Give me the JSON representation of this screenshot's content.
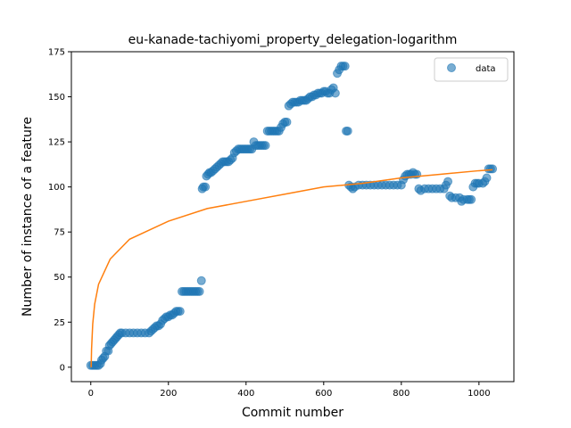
{
  "chart_data": {
    "type": "scatter",
    "title": "eu-kanade-tachiyomi_property_delegation-logarithm",
    "xlabel": "Commit number",
    "ylabel": "Number of instance of a feature",
    "xlim": [
      -50,
      1090
    ],
    "ylim": [
      -8,
      175
    ],
    "x_ticks": [
      0,
      200,
      400,
      600,
      800,
      1000
    ],
    "y_ticks": [
      0,
      25,
      50,
      75,
      100,
      125,
      150,
      175
    ],
    "grid": false,
    "legend": {
      "placement": "top-right",
      "entries": [
        "data"
      ]
    },
    "colors": {
      "scatter": "#1f77b4",
      "fit": "#ff7f0e"
    },
    "series": [
      {
        "name": "data",
        "kind": "scatter",
        "points": [
          [
            0,
            1
          ],
          [
            5,
            1
          ],
          [
            10,
            1
          ],
          [
            15,
            1
          ],
          [
            20,
            1
          ],
          [
            25,
            2
          ],
          [
            28,
            4
          ],
          [
            32,
            5
          ],
          [
            36,
            6
          ],
          [
            40,
            9
          ],
          [
            45,
            9
          ],
          [
            48,
            12
          ],
          [
            52,
            13
          ],
          [
            56,
            14
          ],
          [
            60,
            15
          ],
          [
            64,
            16
          ],
          [
            68,
            17
          ],
          [
            72,
            18
          ],
          [
            76,
            19
          ],
          [
            80,
            19
          ],
          [
            90,
            19
          ],
          [
            100,
            19
          ],
          [
            110,
            19
          ],
          [
            120,
            19
          ],
          [
            130,
            19
          ],
          [
            140,
            19
          ],
          [
            150,
            19
          ],
          [
            155,
            20
          ],
          [
            160,
            21
          ],
          [
            165,
            22
          ],
          [
            170,
            23
          ],
          [
            175,
            23
          ],
          [
            180,
            24
          ],
          [
            185,
            26
          ],
          [
            190,
            27
          ],
          [
            195,
            28
          ],
          [
            200,
            28
          ],
          [
            205,
            29
          ],
          [
            210,
            29
          ],
          [
            215,
            30
          ],
          [
            220,
            31
          ],
          [
            225,
            31
          ],
          [
            230,
            31
          ],
          [
            235,
            42
          ],
          [
            240,
            42
          ],
          [
            245,
            42
          ],
          [
            250,
            42
          ],
          [
            255,
            42
          ],
          [
            260,
            42
          ],
          [
            265,
            42
          ],
          [
            270,
            42
          ],
          [
            275,
            42
          ],
          [
            280,
            42
          ],
          [
            285,
            48
          ],
          [
            287,
            99
          ],
          [
            290,
            100
          ],
          [
            295,
            100
          ],
          [
            298,
            106
          ],
          [
            302,
            107
          ],
          [
            306,
            108
          ],
          [
            310,
            108
          ],
          [
            315,
            109
          ],
          [
            320,
            110
          ],
          [
            325,
            111
          ],
          [
            330,
            112
          ],
          [
            335,
            113
          ],
          [
            340,
            114
          ],
          [
            345,
            114
          ],
          [
            350,
            114
          ],
          [
            355,
            114
          ],
          [
            360,
            115
          ],
          [
            365,
            116
          ],
          [
            370,
            119
          ],
          [
            375,
            120
          ],
          [
            380,
            121
          ],
          [
            385,
            121
          ],
          [
            390,
            121
          ],
          [
            395,
            121
          ],
          [
            400,
            121
          ],
          [
            405,
            121
          ],
          [
            410,
            121
          ],
          [
            415,
            121
          ],
          [
            420,
            125
          ],
          [
            425,
            123
          ],
          [
            430,
            123
          ],
          [
            435,
            123
          ],
          [
            440,
            123
          ],
          [
            445,
            123
          ],
          [
            450,
            123
          ],
          [
            455,
            131
          ],
          [
            460,
            131
          ],
          [
            465,
            131
          ],
          [
            470,
            131
          ],
          [
            475,
            131
          ],
          [
            480,
            131
          ],
          [
            485,
            131
          ],
          [
            490,
            133
          ],
          [
            495,
            135
          ],
          [
            500,
            136
          ],
          [
            505,
            136
          ],
          [
            510,
            145
          ],
          [
            515,
            146
          ],
          [
            520,
            147
          ],
          [
            525,
            147
          ],
          [
            530,
            147
          ],
          [
            535,
            147
          ],
          [
            540,
            148
          ],
          [
            545,
            148
          ],
          [
            550,
            148
          ],
          [
            555,
            148
          ],
          [
            560,
            149
          ],
          [
            565,
            150
          ],
          [
            570,
            150
          ],
          [
            575,
            151
          ],
          [
            580,
            151
          ],
          [
            585,
            152
          ],
          [
            590,
            152
          ],
          [
            595,
            152
          ],
          [
            600,
            153
          ],
          [
            605,
            153
          ],
          [
            610,
            152
          ],
          [
            615,
            152
          ],
          [
            620,
            154
          ],
          [
            625,
            155
          ],
          [
            630,
            152
          ],
          [
            635,
            163
          ],
          [
            640,
            165
          ],
          [
            645,
            167
          ],
          [
            650,
            167
          ],
          [
            655,
            167
          ],
          [
            658,
            131
          ],
          [
            662,
            131
          ],
          [
            665,
            101
          ],
          [
            670,
            100
          ],
          [
            675,
            99
          ],
          [
            680,
            100
          ],
          [
            690,
            101
          ],
          [
            700,
            101
          ],
          [
            710,
            101
          ],
          [
            720,
            101
          ],
          [
            730,
            101
          ],
          [
            740,
            101
          ],
          [
            750,
            101
          ],
          [
            760,
            101
          ],
          [
            770,
            101
          ],
          [
            780,
            101
          ],
          [
            790,
            101
          ],
          [
            800,
            101
          ],
          [
            805,
            104
          ],
          [
            810,
            106
          ],
          [
            815,
            107
          ],
          [
            820,
            107
          ],
          [
            825,
            107
          ],
          [
            830,
            108
          ],
          [
            835,
            107
          ],
          [
            840,
            107
          ],
          [
            845,
            99
          ],
          [
            850,
            98
          ],
          [
            860,
            99
          ],
          [
            870,
            99
          ],
          [
            880,
            99
          ],
          [
            890,
            99
          ],
          [
            900,
            99
          ],
          [
            910,
            99
          ],
          [
            915,
            101
          ],
          [
            920,
            103
          ],
          [
            925,
            95
          ],
          [
            930,
            94
          ],
          [
            940,
            94
          ],
          [
            950,
            94
          ],
          [
            955,
            92
          ],
          [
            960,
            93
          ],
          [
            970,
            93
          ],
          [
            975,
            93
          ],
          [
            980,
            93
          ],
          [
            985,
            100
          ],
          [
            990,
            102
          ],
          [
            995,
            102
          ],
          [
            1000,
            102
          ],
          [
            1010,
            102
          ],
          [
            1015,
            103
          ],
          [
            1020,
            105
          ],
          [
            1025,
            110
          ],
          [
            1030,
            110
          ],
          [
            1035,
            110
          ]
        ]
      },
      {
        "name": "",
        "kind": "line",
        "model": "logarithm",
        "x_range": [
          1,
          1035
        ],
        "fit_points": [
          [
            1,
            0
          ],
          [
            2,
            10
          ],
          [
            5,
            24
          ],
          [
            10,
            35
          ],
          [
            20,
            46
          ],
          [
            50,
            60
          ],
          [
            100,
            71
          ],
          [
            200,
            81
          ],
          [
            300,
            88
          ],
          [
            400,
            92
          ],
          [
            500,
            96
          ],
          [
            600,
            100
          ],
          [
            700,
            102
          ],
          [
            800,
            105
          ],
          [
            900,
            107
          ],
          [
            1000,
            109
          ],
          [
            1035,
            109.5
          ]
        ]
      }
    ]
  }
}
